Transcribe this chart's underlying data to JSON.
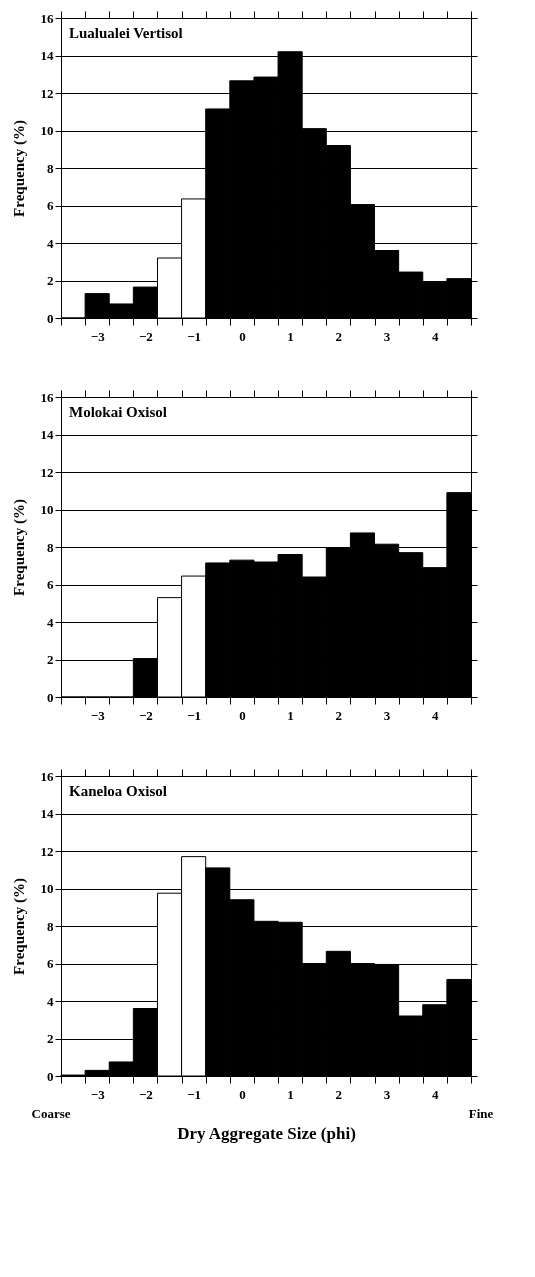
{
  "chart_data": [
    {
      "type": "bar",
      "title": "Lualualei Vertisol",
      "ylabel": "Frequency  (%)",
      "x": [
        -3.5,
        -3,
        -2.5,
        -2,
        -1.5,
        -1,
        -0.5,
        0,
        0.5,
        1,
        1.5,
        2,
        2.5,
        3,
        3.5,
        4,
        4.5
      ],
      "values": [
        0,
        1.3,
        0.75,
        1.65,
        3.2,
        6.35,
        11.15,
        12.65,
        12.85,
        14.2,
        10.1,
        9.2,
        6.05,
        3.6,
        2.45,
        1.9,
        2.1
      ],
      "colors": [
        "#000000",
        "#000000",
        "#000000",
        "#000000",
        "#ffffff",
        "#ffffff",
        "#000000",
        "#000000",
        "#000000",
        "#000000",
        "#000000",
        "#000000",
        "#000000",
        "#000000",
        "#000000",
        "#000000",
        "#000000"
      ],
      "xlim": [
        -3.75,
        4.75
      ],
      "xticks": [
        -3,
        -2,
        -1,
        0,
        1,
        2,
        3,
        4
      ],
      "ylim": [
        0,
        16
      ],
      "yticks": [
        0,
        2,
        4,
        6,
        8,
        10,
        12,
        14,
        16
      ],
      "grid": "y"
    },
    {
      "type": "bar",
      "title": "Molokai Oxisol",
      "ylabel": "Frequency  (%)",
      "x": [
        -3.5,
        -3,
        -2.5,
        -2,
        -1.5,
        -1,
        -0.5,
        0,
        0.5,
        1,
        1.5,
        2,
        2.5,
        3,
        3.5,
        4,
        4.5
      ],
      "values": [
        0,
        0,
        0,
        2.05,
        5.3,
        6.45,
        7.15,
        7.3,
        7.2,
        7.6,
        6.4,
        7.95,
        8.75,
        8.15,
        7.7,
        6.9,
        10.9
      ],
      "colors": [
        "#000000",
        "#000000",
        "#000000",
        "#000000",
        "#ffffff",
        "#ffffff",
        "#000000",
        "#000000",
        "#000000",
        "#000000",
        "#000000",
        "#000000",
        "#000000",
        "#000000",
        "#000000",
        "#000000",
        "#000000"
      ],
      "xlim": [
        -3.75,
        4.75
      ],
      "xticks": [
        -3,
        -2,
        -1,
        0,
        1,
        2,
        3,
        4
      ],
      "ylim": [
        0,
        16
      ],
      "yticks": [
        0,
        2,
        4,
        6,
        8,
        10,
        12,
        14,
        16
      ],
      "grid": "y"
    },
    {
      "type": "bar",
      "title": "Kaneloa Oxisol",
      "ylabel": "Frequency  (%)",
      "xlabel": "Dry Aggregate Size (phi)",
      "annotations": [
        "Coarse",
        "Fine"
      ],
      "x": [
        -3.5,
        -3,
        -2.5,
        -2,
        -1.5,
        -1,
        -0.5,
        0,
        0.5,
        1,
        1.5,
        2,
        2.5,
        3,
        3.5,
        4,
        4.5
      ],
      "values": [
        0.05,
        0.3,
        0.75,
        3.6,
        9.75,
        11.7,
        11.1,
        9.4,
        8.25,
        8.2,
        6.0,
        6.65,
        6.0,
        5.95,
        3.2,
        3.8,
        5.15
      ],
      "colors": [
        "#000000",
        "#000000",
        "#000000",
        "#000000",
        "#ffffff",
        "#ffffff",
        "#000000",
        "#000000",
        "#000000",
        "#000000",
        "#000000",
        "#000000",
        "#000000",
        "#000000",
        "#000000",
        "#000000",
        "#000000"
      ],
      "xlim": [
        -3.75,
        4.75
      ],
      "xticks": [
        -3,
        -2,
        -1,
        0,
        1,
        2,
        3,
        4
      ],
      "ylim": [
        0,
        16
      ],
      "yticks": [
        0,
        2,
        4,
        6,
        8,
        10,
        12,
        14,
        16
      ],
      "grid": "y"
    }
  ]
}
